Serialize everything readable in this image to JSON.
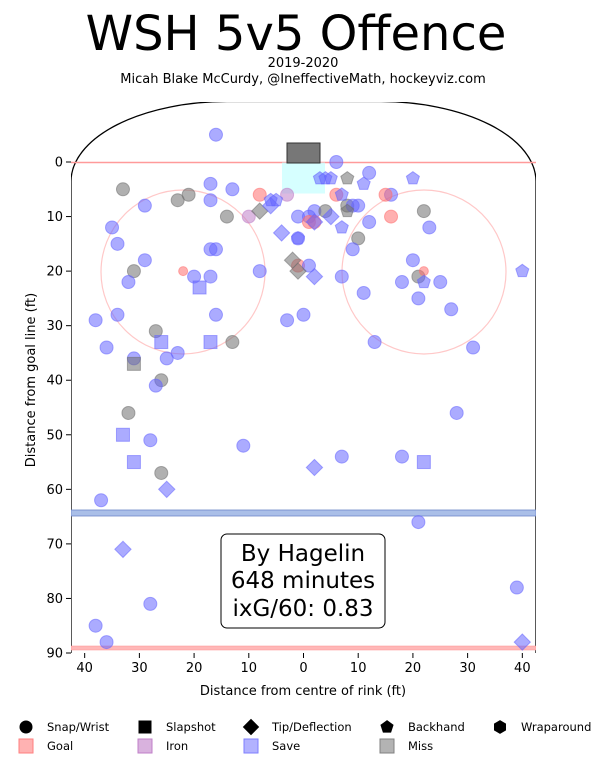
{
  "chart_data": {
    "type": "scatter",
    "title": "WSH 5v5 Offence",
    "subtitle": "2019-2020",
    "credit": "Micah Blake McCurdy, @IneffectiveMath, hockeyviz.com",
    "xlabel": "Distance from centre of rink (ft)",
    "ylabel": "Distance from goal line (ft)",
    "xlim": [
      42.5,
      -42.5
    ],
    "ylim": [
      90,
      -11
    ],
    "xticks": [
      "40",
      "30",
      "20",
      "10",
      "0",
      "10",
      "20",
      "30",
      "40"
    ],
    "yticks": [
      "0",
      "10",
      "20",
      "30",
      "40",
      "50",
      "60",
      "70",
      "80",
      "90"
    ],
    "annotation": {
      "line1": "By Hagelin",
      "line2": "648 minutes",
      "line3": "ixG/60: 0.83"
    },
    "legend": {
      "shapes": [
        {
          "name": "Snap/Wrist",
          "marker": "circle"
        },
        {
          "name": "Slapshot",
          "marker": "square"
        },
        {
          "name": "Tip/Deflection",
          "marker": "diamond"
        },
        {
          "name": "Backhand",
          "marker": "pentagon"
        },
        {
          "name": "Wraparound",
          "marker": "hexagon"
        }
      ],
      "outcomes": [
        {
          "name": "Goal",
          "color": "#ff7f7f"
        },
        {
          "name": "Iron",
          "color": "#c07fc8"
        },
        {
          "name": "Save",
          "color": "#7f7fff"
        },
        {
          "name": "Miss",
          "color": "#808080"
        }
      ]
    },
    "colors": {
      "Save": "#6666ff",
      "Miss": "#707070",
      "Goal": "#ff6f6f",
      "Iron": "#c07fc8"
    },
    "points": [
      {
        "x": 16,
        "y": -5,
        "m": "circle",
        "o": "Save"
      },
      {
        "x": 33,
        "y": 5,
        "m": "circle",
        "o": "Miss"
      },
      {
        "x": 17,
        "y": 4,
        "m": "circle",
        "o": "Save"
      },
      {
        "x": 21,
        "y": 6,
        "m": "circle",
        "o": "Miss"
      },
      {
        "x": 23,
        "y": 7,
        "m": "circle",
        "o": "Miss"
      },
      {
        "x": 13,
        "y": 5,
        "m": "circle",
        "o": "Save"
      },
      {
        "x": 17,
        "y": 7,
        "m": "circle",
        "o": "Save"
      },
      {
        "x": 29,
        "y": 8,
        "m": "circle",
        "o": "Save"
      },
      {
        "x": 14,
        "y": 10,
        "m": "circle",
        "o": "Miss"
      },
      {
        "x": 10,
        "y": 10,
        "m": "circle",
        "o": "Iron"
      },
      {
        "x": 8,
        "y": 6,
        "m": "circle",
        "o": "Goal"
      },
      {
        "x": 3,
        "y": 6,
        "m": "circle",
        "o": "Iron"
      },
      {
        "x": 35,
        "y": 12,
        "m": "circle",
        "o": "Save"
      },
      {
        "x": 34,
        "y": 15,
        "m": "circle",
        "o": "Save"
      },
      {
        "x": 17,
        "y": 16,
        "m": "circle",
        "o": "Save"
      },
      {
        "x": 16,
        "y": 16,
        "m": "circle",
        "o": "Save"
      },
      {
        "x": 31,
        "y": 20,
        "m": "circle",
        "o": "Miss"
      },
      {
        "x": 29,
        "y": 18,
        "m": "circle",
        "o": "Save"
      },
      {
        "x": 22,
        "y": 20,
        "m": "circle",
        "o": "Goal",
        "small": true
      },
      {
        "x": 20,
        "y": 21,
        "m": "circle",
        "o": "Save"
      },
      {
        "x": 17,
        "y": 21,
        "m": "circle",
        "o": "Save"
      },
      {
        "x": 32,
        "y": 22,
        "m": "circle",
        "o": "Save"
      },
      {
        "x": 8,
        "y": 20,
        "m": "circle",
        "o": "Save"
      },
      {
        "x": 38,
        "y": 29,
        "m": "circle",
        "o": "Save"
      },
      {
        "x": 34,
        "y": 28,
        "m": "circle",
        "o": "Save"
      },
      {
        "x": 16,
        "y": 28,
        "m": "circle",
        "o": "Save"
      },
      {
        "x": 27,
        "y": 31,
        "m": "circle",
        "o": "Miss"
      },
      {
        "x": 13,
        "y": 33,
        "m": "circle",
        "o": "Miss"
      },
      {
        "x": 36,
        "y": 34,
        "m": "circle",
        "o": "Save"
      },
      {
        "x": 23,
        "y": 35,
        "m": "circle",
        "o": "Save"
      },
      {
        "x": 31,
        "y": 36,
        "m": "circle",
        "o": "Save"
      },
      {
        "x": 25,
        "y": 36,
        "m": "circle",
        "o": "Save"
      },
      {
        "x": 26,
        "y": 40,
        "m": "circle",
        "o": "Miss"
      },
      {
        "x": 27,
        "y": 41,
        "m": "circle",
        "o": "Save"
      },
      {
        "x": 32,
        "y": 46,
        "m": "circle",
        "o": "Miss"
      },
      {
        "x": 28,
        "y": 51,
        "m": "circle",
        "o": "Save"
      },
      {
        "x": 11,
        "y": 52,
        "m": "circle",
        "o": "Save"
      },
      {
        "x": 26,
        "y": 57,
        "m": "circle",
        "o": "Miss"
      },
      {
        "x": 37,
        "y": 62,
        "m": "circle",
        "o": "Save"
      },
      {
        "x": 28,
        "y": 81,
        "m": "circle",
        "o": "Save"
      },
      {
        "x": 38,
        "y": 85,
        "m": "circle",
        "o": "Save"
      },
      {
        "x": 36,
        "y": 88,
        "m": "circle",
        "o": "Save"
      },
      {
        "x": -6,
        "y": 0,
        "m": "circle",
        "o": "Save"
      },
      {
        "x": 1,
        "y": 10,
        "m": "circle",
        "o": "Save"
      },
      {
        "x": -1,
        "y": 10,
        "m": "circle",
        "o": "Save"
      },
      {
        "x": -2,
        "y": 9,
        "m": "circle",
        "o": "Save"
      },
      {
        "x": -4,
        "y": 9,
        "m": "circle",
        "o": "Miss"
      },
      {
        "x": -1,
        "y": 11,
        "m": "circle",
        "o": "Goal"
      },
      {
        "x": -2,
        "y": 11,
        "m": "circle",
        "o": "Goal"
      },
      {
        "x": -8,
        "y": 8,
        "m": "circle",
        "o": "Miss"
      },
      {
        "x": -9,
        "y": 8,
        "m": "circle",
        "o": "Save"
      },
      {
        "x": -10,
        "y": 8,
        "m": "circle",
        "o": "Save"
      },
      {
        "x": -6,
        "y": 6,
        "m": "circle",
        "o": "Goal"
      },
      {
        "x": -12,
        "y": 2,
        "m": "circle",
        "o": "Save"
      },
      {
        "x": -16,
        "y": 6,
        "m": "circle",
        "o": "Save"
      },
      {
        "x": -15,
        "y": 6,
        "m": "circle",
        "o": "Goal"
      },
      {
        "x": -16,
        "y": 10,
        "m": "circle",
        "o": "Goal"
      },
      {
        "x": -12,
        "y": 11,
        "m": "circle",
        "o": "Save"
      },
      {
        "x": -10,
        "y": 14,
        "m": "circle",
        "o": "Miss"
      },
      {
        "x": -9,
        "y": 16,
        "m": "circle",
        "o": "Save"
      },
      {
        "x": -20,
        "y": 18,
        "m": "circle",
        "o": "Save"
      },
      {
        "x": -21,
        "y": 21,
        "m": "circle",
        "o": "Miss"
      },
      {
        "x": -22,
        "y": 20,
        "m": "circle",
        "o": "Goal",
        "small": true
      },
      {
        "x": -22,
        "y": 9,
        "m": "circle",
        "o": "Miss"
      },
      {
        "x": -23,
        "y": 12,
        "m": "circle",
        "o": "Save"
      },
      {
        "x": -18,
        "y": 22,
        "m": "circle",
        "o": "Save"
      },
      {
        "x": -21,
        "y": 25,
        "m": "circle",
        "o": "Save"
      },
      {
        "x": -25,
        "y": 22,
        "m": "circle",
        "o": "Save"
      },
      {
        "x": -27,
        "y": 27,
        "m": "circle",
        "o": "Save"
      },
      {
        "x": -7,
        "y": 21,
        "m": "circle",
        "o": "Save"
      },
      {
        "x": -11,
        "y": 24,
        "m": "circle",
        "o": "Save"
      },
      {
        "x": -13,
        "y": 33,
        "m": "circle",
        "o": "Save"
      },
      {
        "x": -31,
        "y": 34,
        "m": "circle",
        "o": "Save"
      },
      {
        "x": -28,
        "y": 46,
        "m": "circle",
        "o": "Save"
      },
      {
        "x": -18,
        "y": 54,
        "m": "circle",
        "o": "Save"
      },
      {
        "x": -7,
        "y": 54,
        "m": "circle",
        "o": "Save"
      },
      {
        "x": -21,
        "y": 66,
        "m": "circle",
        "o": "Save"
      },
      {
        "x": -39,
        "y": 78,
        "m": "circle",
        "o": "Save"
      },
      {
        "x": 1,
        "y": 19,
        "m": "circle",
        "o": "Goal"
      },
      {
        "x": -1,
        "y": 19,
        "m": "circle",
        "o": "Save"
      },
      {
        "x": 3,
        "y": 29,
        "m": "circle",
        "o": "Save"
      },
      {
        "x": 0,
        "y": 28,
        "m": "circle",
        "o": "Save"
      },
      {
        "x": 1,
        "y": 14,
        "m": "circle",
        "o": "Save"
      },
      {
        "x": 19,
        "y": 23,
        "m": "square",
        "o": "Save"
      },
      {
        "x": 17,
        "y": 33,
        "m": "square",
        "o": "Save"
      },
      {
        "x": 26,
        "y": 33,
        "m": "square",
        "o": "Save"
      },
      {
        "x": 31,
        "y": 37,
        "m": "square",
        "o": "Miss"
      },
      {
        "x": 33,
        "y": 50,
        "m": "square",
        "o": "Save"
      },
      {
        "x": 31,
        "y": 55,
        "m": "square",
        "o": "Save"
      },
      {
        "x": -22,
        "y": 55,
        "m": "square",
        "o": "Save"
      },
      {
        "x": 25,
        "y": 60,
        "m": "diamond",
        "o": "Save"
      },
      {
        "x": 33,
        "y": 71,
        "m": "diamond",
        "o": "Save"
      },
      {
        "x": -2,
        "y": 56,
        "m": "diamond",
        "o": "Save"
      },
      {
        "x": -40,
        "y": 88,
        "m": "diamond",
        "o": "Save"
      },
      {
        "x": 4,
        "y": 13,
        "m": "diamond",
        "o": "Save"
      },
      {
        "x": 2,
        "y": 18,
        "m": "diamond",
        "o": "Miss"
      },
      {
        "x": 1,
        "y": 20,
        "m": "diamond",
        "o": "Miss"
      },
      {
        "x": -2,
        "y": 21,
        "m": "diamond",
        "o": "Save"
      },
      {
        "x": 8,
        "y": 9,
        "m": "diamond",
        "o": "Miss"
      },
      {
        "x": 6,
        "y": 8,
        "m": "diamond",
        "o": "Save"
      },
      {
        "x": -2,
        "y": 11,
        "m": "diamond",
        "o": "Save"
      },
      {
        "x": -5,
        "y": 10,
        "m": "diamond",
        "o": "Save"
      },
      {
        "x": 6,
        "y": 7,
        "m": "pentagon",
        "o": "Save"
      },
      {
        "x": 5,
        "y": 7,
        "m": "pentagon",
        "o": "Save"
      },
      {
        "x": -3,
        "y": 3,
        "m": "pentagon",
        "o": "Save"
      },
      {
        "x": -4,
        "y": 3,
        "m": "pentagon",
        "o": "Save"
      },
      {
        "x": -5,
        "y": 3,
        "m": "pentagon",
        "o": "Save"
      },
      {
        "x": -8,
        "y": 3,
        "m": "pentagon",
        "o": "Miss"
      },
      {
        "x": -7,
        "y": 6,
        "m": "pentagon",
        "o": "Save"
      },
      {
        "x": -8,
        "y": 9,
        "m": "pentagon",
        "o": "Miss"
      },
      {
        "x": -7,
        "y": 12,
        "m": "pentagon",
        "o": "Save"
      },
      {
        "x": -11,
        "y": 4,
        "m": "pentagon",
        "o": "Save"
      },
      {
        "x": -20,
        "y": 3,
        "m": "pentagon",
        "o": "Save"
      },
      {
        "x": -22,
        "y": 22,
        "m": "pentagon",
        "o": "Save"
      },
      {
        "x": -40,
        "y": 20,
        "m": "pentagon",
        "o": "Save"
      },
      {
        "x": 1,
        "y": 14,
        "m": "pentagon",
        "o": "Save"
      }
    ]
  }
}
